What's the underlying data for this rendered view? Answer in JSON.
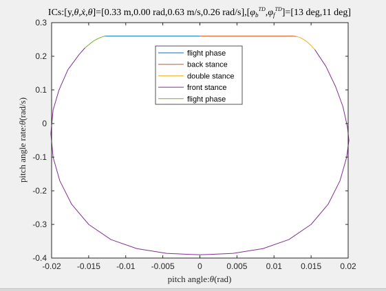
{
  "chart_data": {
    "type": "line",
    "title": "ICs:[y,θ,ẋ,θ̇]=[0.33 m,0.00 rad,0.63 m/s,0.26 rad/s],[φb^TD,φf^TD]=[13 deg,11 deg]",
    "title_parts": {
      "prefix": "ICs:[y,",
      "theta": "θ",
      "comma1": ",",
      "xdot": "ẋ",
      "comma2": ",",
      "thetadot": "θ̇",
      "middle": "]=[0.33 m,0.00 rad,0.63 m/s,0.26 rad/s],[",
      "phi": "φ",
      "sub_b": "b",
      "sup_td": "TD",
      "comma3": ",",
      "sub_f": "f",
      "suffix": "]=[13 deg,11 deg]"
    },
    "xlabel": "pitch angle:θ(rad)",
    "xlabel_parts": {
      "main": "pitch angle:",
      "sym": "θ",
      "unit": "(rad)"
    },
    "ylabel": "pitch angle rate:θ̇(rad/s)",
    "ylabel_parts": {
      "main": "pitch angle rate:",
      "sym": "θ̇",
      "unit": "(rad/s)"
    },
    "xlim": [
      -0.02,
      0.02
    ],
    "ylim": [
      -0.4,
      0.3
    ],
    "xticks": [
      -0.02,
      -0.015,
      -0.01,
      -0.005,
      0,
      0.005,
      0.01,
      0.015,
      0.02
    ],
    "xtick_labels": [
      "-0.02",
      "-0.015",
      "-0.01",
      "-0.005",
      "0",
      "0.005",
      "0.01",
      "0.015",
      "0.02"
    ],
    "yticks": [
      -0.4,
      -0.3,
      -0.2,
      -0.1,
      0,
      0.1,
      0.2,
      0.3
    ],
    "ytick_labels": [
      "-0.4",
      "-0.3",
      "-0.2",
      "-0.1",
      "0",
      "0.1",
      "0.2",
      "0.3"
    ],
    "grid": false,
    "legend_position": "top-center",
    "series": [
      {
        "name": "flight phase",
        "color": "#0072BD",
        "x": [
          -0.0128,
          -0.011,
          -0.009,
          -0.007,
          -0.005,
          -0.003,
          -0.001,
          0
        ],
        "y": [
          0.26,
          0.26,
          0.26,
          0.26,
          0.26,
          0.26,
          0.26,
          0.26
        ]
      },
      {
        "name": "back stance",
        "color": "#D95319",
        "x": [
          0,
          0.002,
          0.004,
          0.006,
          0.008,
          0.01,
          0.0125,
          0.013
        ],
        "y": [
          0.26,
          0.26,
          0.26,
          0.26,
          0.26,
          0.26,
          0.26,
          0.259
        ]
      },
      {
        "name": "double stance",
        "color": "#EDB120",
        "x": [
          0.013,
          0.0135,
          0.014,
          0.0145,
          0.015,
          0.0155
        ],
        "y": [
          0.259,
          0.256,
          0.25,
          0.242,
          0.232,
          0.22
        ]
      },
      {
        "name": "front stance",
        "color": "#7E2F8E",
        "x": [
          0.0155,
          0.017,
          0.0183,
          0.0193,
          0.0199,
          0.0201,
          0.0198,
          0.0189,
          0.0173,
          0.015,
          0.012,
          0.0085,
          0.0045,
          0.0015,
          0,
          -0.0015,
          -0.0045,
          -0.0085,
          -0.012,
          -0.015,
          -0.0173,
          -0.0189,
          -0.0198,
          -0.0201,
          -0.0198,
          -0.019,
          -0.0178,
          -0.0163,
          -0.0155
        ],
        "y": [
          0.22,
          0.17,
          0.11,
          0.05,
          -0.01,
          -0.05,
          -0.1,
          -0.17,
          -0.24,
          -0.3,
          -0.345,
          -0.372,
          -0.386,
          -0.389,
          -0.39,
          -0.389,
          -0.386,
          -0.372,
          -0.345,
          -0.3,
          -0.24,
          -0.17,
          -0.1,
          -0.03,
          0.04,
          0.1,
          0.16,
          0.205,
          0.225
        ]
      },
      {
        "name": "flight phase",
        "color": "#77AC30",
        "x": [
          -0.0155,
          -0.015,
          -0.0145,
          -0.014,
          -0.0135,
          -0.013,
          -0.0128
        ],
        "y": [
          0.225,
          0.234,
          0.243,
          0.25,
          0.255,
          0.259,
          0.26
        ]
      }
    ]
  }
}
